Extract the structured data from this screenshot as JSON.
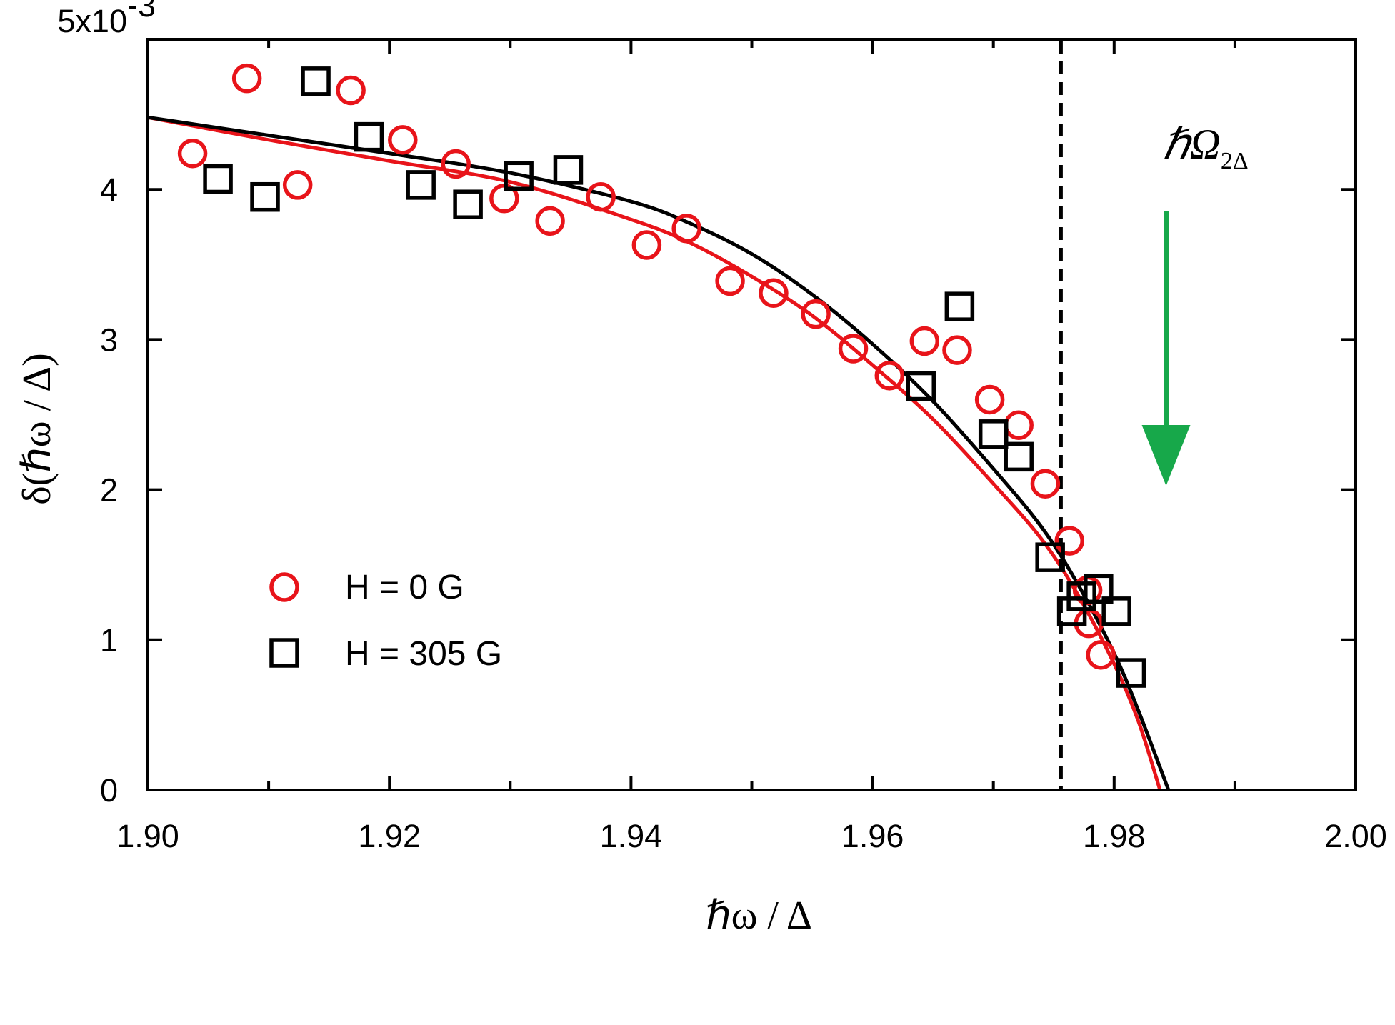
{
  "chart_data": {
    "type": "scatter",
    "title": "",
    "xlabel": "ℏω / Δ",
    "ylabel": "δ(ℏω / Δ)",
    "xlim": [
      1.9,
      2.0
    ],
    "ylim": [
      0,
      0.005
    ],
    "x_ticks": [
      1.9,
      1.92,
      1.94,
      1.96,
      1.98,
      2.0
    ],
    "x_tick_labels": [
      "1.90",
      "1.92",
      "1.94",
      "1.96",
      "1.98",
      "2.00"
    ],
    "y_ticks": [
      0,
      0.001,
      0.002,
      0.003,
      0.004,
      0.005
    ],
    "y_tick_labels": [
      "0",
      "1",
      "2",
      "3",
      "4",
      "5x10"
    ],
    "y_scale_exponent": "-3",
    "grid": false,
    "legend_position": "bottom-left",
    "colors": {
      "h0": "#e8141a",
      "h305": "#000000",
      "arrow": "#17a84a"
    },
    "series": [
      {
        "name": "H = 0 G",
        "marker": "circle",
        "color": "#e8141a",
        "points": [
          [
            1.9037,
            0.00424
          ],
          [
            1.9082,
            0.00474
          ],
          [
            1.9124,
            0.00403
          ],
          [
            1.9168,
            0.00466
          ],
          [
            1.9211,
            0.00433
          ],
          [
            1.9255,
            0.00417
          ],
          [
            1.9295,
            0.00394
          ],
          [
            1.9333,
            0.00379
          ],
          [
            1.9375,
            0.00395
          ],
          [
            1.9413,
            0.00363
          ],
          [
            1.9446,
            0.00374
          ],
          [
            1.9482,
            0.00339
          ],
          [
            1.9518,
            0.00331
          ],
          [
            1.9553,
            0.00317
          ],
          [
            1.9584,
            0.00294
          ],
          [
            1.9614,
            0.00276
          ],
          [
            1.9643,
            0.00299
          ],
          [
            1.967,
            0.00293
          ],
          [
            1.9697,
            0.0026
          ],
          [
            1.9721,
            0.00243
          ],
          [
            1.9743,
            0.00204
          ],
          [
            1.9763,
            0.00166
          ],
          [
            1.9778,
            0.00133
          ],
          [
            1.9779,
            0.00111
          ],
          [
            1.9789,
            0.0009
          ]
        ]
      },
      {
        "name": "H = 305 G",
        "marker": "square",
        "color": "#000000",
        "points": [
          [
            1.9058,
            0.00407
          ],
          [
            1.9097,
            0.00395
          ],
          [
            1.9139,
            0.00472
          ],
          [
            1.9183,
            0.00435
          ],
          [
            1.9226,
            0.00403
          ],
          [
            1.9265,
            0.0039
          ],
          [
            1.9307,
            0.00409
          ],
          [
            1.9348,
            0.00413
          ],
          [
            1.964,
            0.00269
          ],
          [
            1.9672,
            0.00322
          ],
          [
            1.97,
            0.00237
          ],
          [
            1.9721,
            0.00222
          ],
          [
            1.9747,
            0.00155
          ],
          [
            1.9765,
            0.00119
          ],
          [
            1.9773,
            0.00129
          ],
          [
            1.9787,
            0.00134
          ],
          [
            1.9802,
            0.00119
          ],
          [
            1.9814,
            0.00078
          ]
        ]
      }
    ],
    "fit_curves": [
      {
        "name": "fit H = 0 G",
        "color": "#e8141a",
        "points": [
          [
            1.9,
            0.00448
          ],
          [
            1.91,
            0.00433
          ],
          [
            1.92,
            0.00419
          ],
          [
            1.93,
            0.00405
          ],
          [
            1.94,
            0.0038
          ],
          [
            1.945,
            0.00364
          ],
          [
            1.95,
            0.00342
          ],
          [
            1.955,
            0.00316
          ],
          [
            1.96,
            0.00283
          ],
          [
            1.965,
            0.00247
          ],
          [
            1.97,
            0.00204
          ],
          [
            1.974,
            0.00167
          ],
          [
            1.977,
            0.0013
          ],
          [
            1.98,
            0.00084
          ],
          [
            1.982,
            0.00046
          ],
          [
            1.9838,
            0.0
          ]
        ]
      },
      {
        "name": "fit H = 305 G",
        "color": "#000000",
        "points": [
          [
            1.9,
            0.00448
          ],
          [
            1.91,
            0.00436
          ],
          [
            1.92,
            0.00424
          ],
          [
            1.93,
            0.00411
          ],
          [
            1.94,
            0.00392
          ],
          [
            1.945,
            0.00377
          ],
          [
            1.95,
            0.00357
          ],
          [
            1.955,
            0.0033
          ],
          [
            1.96,
            0.00297
          ],
          [
            1.965,
            0.00259
          ],
          [
            1.97,
            0.00214
          ],
          [
            1.974,
            0.00175
          ],
          [
            1.977,
            0.00137
          ],
          [
            1.98,
            0.00091
          ],
          [
            1.982,
            0.00053
          ],
          [
            1.9845,
            0.0
          ]
        ]
      }
    ],
    "annotations": {
      "threshold_x": 1.9756,
      "threshold_style": "dashed vertical line",
      "arrow_x": 1.9843,
      "arrow_label_main": "ℏΩ",
      "arrow_label_sub": "2Δ"
    }
  }
}
